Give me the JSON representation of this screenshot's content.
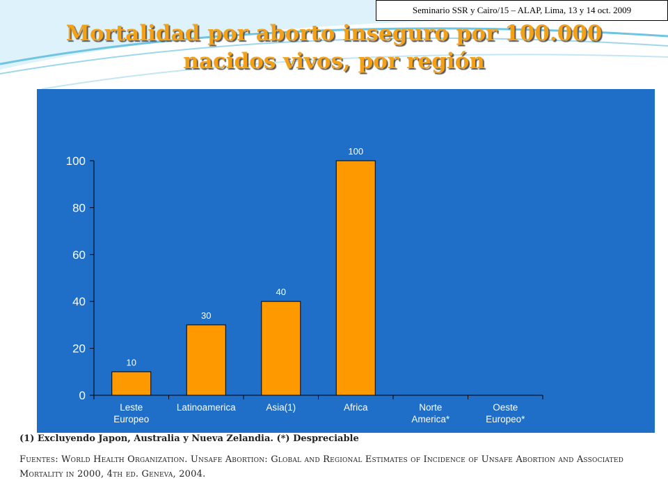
{
  "header": {
    "note": "Seminario SSR y Cairo/15 – ALAP, Lima, 13 y 14 oct. 2009"
  },
  "slide": {
    "title_line1": "Mortalidad por aborto inseguro por 100.000",
    "title_line2": "nacidos vivos, por región",
    "footnote": "(1) Excluyendo Japon, Australia y Nueva Zelandia. (*) Despreciable",
    "source": "Fuentes: World Health Organization. Unsafe Abortion: Global and Regional Estimates of Incidence of Unsafe Abortion and Associated Mortality in 2000, 4th ed. Geneva, 2004."
  },
  "colors": {
    "title": "#F2A118",
    "panel": "#1F6EC8",
    "bar": "#FF9900",
    "axis_text": "#FFFFFF"
  },
  "chart_data": {
    "type": "bar",
    "categories": [
      [
        "Leste",
        "Europeo"
      ],
      [
        "Latinoamerica"
      ],
      [
        "Asia(1)"
      ],
      [
        "Africa"
      ],
      [
        "Norte",
        "America*"
      ],
      [
        "Oeste",
        "Europeo*"
      ]
    ],
    "values": [
      10,
      30,
      40,
      100,
      null,
      null
    ],
    "data_labels": [
      "10",
      "30",
      "40",
      "100",
      "",
      ""
    ],
    "ylim": [
      0,
      100
    ],
    "yticks": [
      0,
      20,
      40,
      60,
      80,
      100
    ],
    "grid": false,
    "legend": "none"
  }
}
